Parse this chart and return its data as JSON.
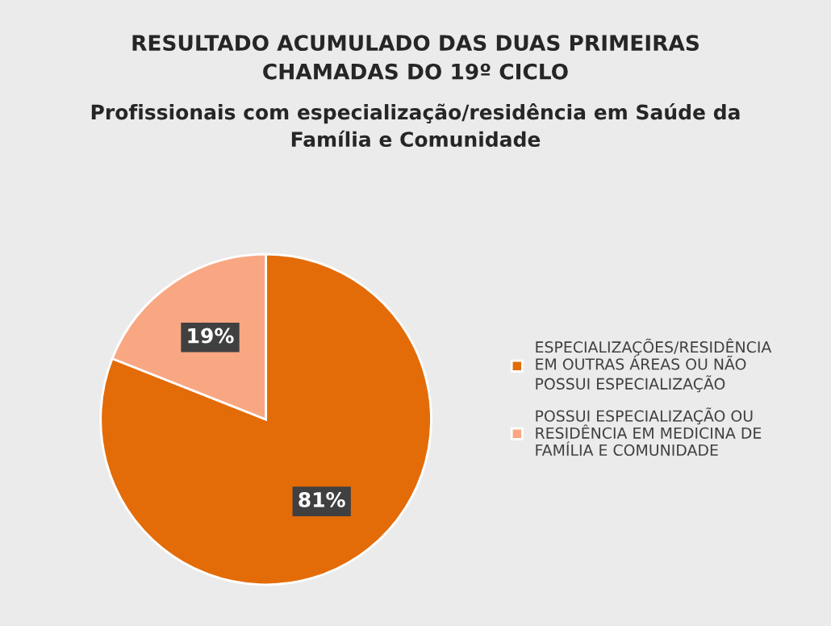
{
  "chart_data": {
    "type": "pie",
    "title": "RESULTADO ACUMULADO DAS DUAS PRIMEIRAS\nCHAMADAS DO 19º CICLO",
    "subtitle": "Profissionais com especialização/residência em Saúde da\nFamília e Comunidade",
    "categories": [
      "ESPECIALIZAÇÕES/RESIDÊNCIA EM OUTRAS ÁREAS OU NÃO POSSUI ESPECIALIZAÇÃO",
      "POSSUI ESPECIALIZAÇÃO OU RESIDÊNCIA EM MEDICINA DE FAMÍLIA E COMUNIDADE"
    ],
    "values": [
      81,
      19
    ],
    "colors": [
      "#e36c09",
      "#f9a783"
    ],
    "value_labels": [
      "81%",
      "19%"
    ],
    "legend": "right"
  }
}
